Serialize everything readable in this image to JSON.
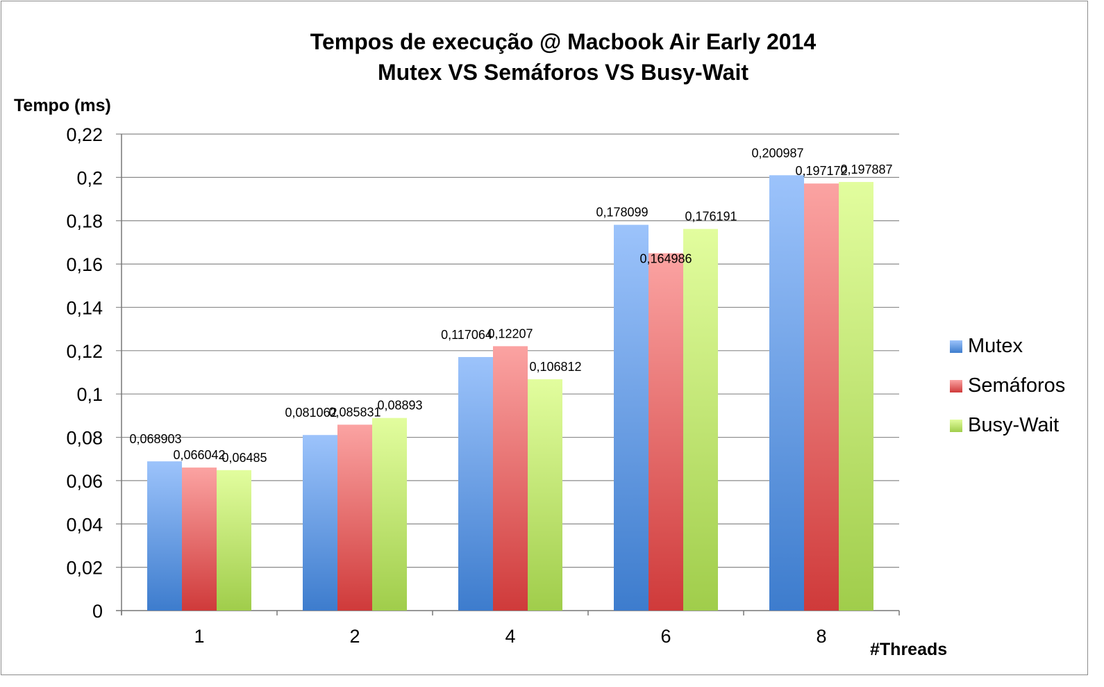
{
  "chart_data": {
    "type": "bar",
    "title": "Tempos de execução @ Macbook Air Early 2014",
    "subtitle": "Mutex VS Semáforos VS Busy-Wait",
    "ylabel": "Tempo (ms)",
    "xlabel": "#Threads",
    "categories": [
      "1",
      "2",
      "4",
      "6",
      "8"
    ],
    "series": [
      {
        "name": "Mutex",
        "color_top": "#9cc3fb",
        "color_bottom": "#3d7ccd",
        "values": [
          0.068903,
          0.081062,
          0.117064,
          0.178099,
          0.200987
        ],
        "labels": [
          "0,068903",
          "0,081062",
          "0,117064",
          "0,178099",
          "0,200987"
        ]
      },
      {
        "name": "Semáforos",
        "color_top": "#fba3a2",
        "color_bottom": "#cf3a3a",
        "values": [
          0.066042,
          0.085831,
          0.12207,
          0.164986,
          0.197172
        ],
        "labels": [
          "0,066042",
          "0,085831",
          "0,12207",
          "0,164986",
          "0,197172"
        ]
      },
      {
        "name": "Busy-Wait",
        "color_top": "#e2fd9e",
        "color_bottom": "#a0cd4b",
        "values": [
          0.06485,
          0.08893,
          0.106812,
          0.176191,
          0.197887
        ],
        "labels": [
          "0,06485",
          "0,08893",
          "0,106812",
          "0,176191",
          "0,197887"
        ]
      }
    ],
    "ylim": [
      0,
      0.22
    ],
    "yticks": [
      "0",
      "0,02",
      "0,04",
      "0,06",
      "0,08",
      "0,1",
      "0,12",
      "0,14",
      "0,16",
      "0,18",
      "0,2",
      "0,22"
    ],
    "grid": true,
    "legend_position": "right"
  }
}
